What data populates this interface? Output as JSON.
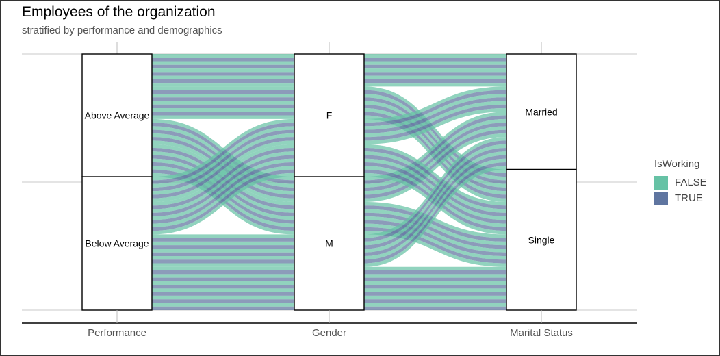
{
  "chart_data": {
    "type": "alluvial",
    "title": "Employees of the organization",
    "subtitle": "stratified by performance and demographics",
    "axes": [
      "Performance",
      "Gender",
      "Marital Status"
    ],
    "strata": [
      [
        "Above Average",
        "Below Average"
      ],
      [
        "F",
        "M"
      ],
      [
        "Married",
        "Single"
      ]
    ],
    "y_ticks": [
      0,
      0.25,
      0.5,
      0.75,
      1
    ],
    "legend": {
      "title": "IsWorking",
      "placement": "right",
      "entries": [
        {
          "label": "FALSE",
          "color": "#66c2a5"
        },
        {
          "label": "TRUE",
          "color": "#5f75a0"
        }
      ]
    },
    "flows": [
      {
        "path": [
          "Above Average",
          "F",
          "Married"
        ],
        "values": [
          1,
          1,
          1,
          1,
          1,
          1,
          1,
          1,
          1
        ]
      },
      {
        "path": [
          "Above Average",
          "F",
          "Single"
        ],
        "values": [
          1,
          1,
          1,
          1,
          1,
          1,
          1,
          1,
          1
        ]
      },
      {
        "path": [
          "Above Average",
          "M",
          "Married"
        ],
        "values": [
          1,
          1,
          1,
          1,
          1,
          1,
          1
        ]
      },
      {
        "path": [
          "Above Average",
          "M",
          "Single"
        ],
        "values": [
          1,
          1,
          1,
          1,
          1,
          1,
          1,
          1,
          1
        ]
      },
      {
        "path": [
          "Below Average",
          "F",
          "Married"
        ],
        "values": [
          1,
          1,
          1,
          1,
          1,
          1,
          1
        ]
      },
      {
        "path": [
          "Below Average",
          "F",
          "Single"
        ],
        "values": [
          1,
          1,
          1,
          1,
          1,
          1,
          1,
          1,
          1
        ]
      },
      {
        "path": [
          "Below Average",
          "M",
          "Married"
        ],
        "values": [
          1,
          1,
          1,
          1,
          1,
          1,
          1,
          1,
          1
        ]
      },
      {
        "path": [
          "Below Average",
          "M",
          "Single"
        ],
        "values": [
          1,
          1,
          1,
          1,
          1,
          1,
          1,
          1,
          1,
          1,
          1,
          1
        ]
      }
    ]
  }
}
